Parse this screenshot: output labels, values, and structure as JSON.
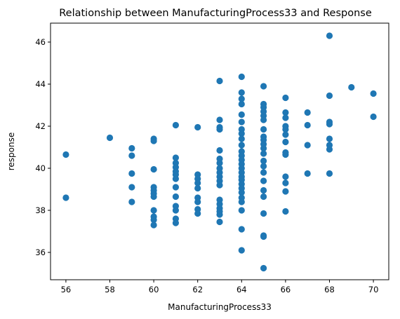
{
  "chart_data": {
    "type": "scatter",
    "title": "Relationship between ManufacturingProcess33 and Response",
    "xlabel": "ManufacturingProcess33",
    "ylabel": "response",
    "xlim": [
      55.3,
      70.7
    ],
    "ylim": [
      34.7,
      46.9
    ],
    "xticks": [
      56,
      58,
      60,
      62,
      64,
      66,
      68,
      70
    ],
    "yticks": [
      36,
      38,
      40,
      42,
      44,
      46
    ],
    "grid": false,
    "marker_color": "#1f77b4",
    "points": [
      {
        "x": 56,
        "y": 40.65
      },
      {
        "x": 56,
        "y": 38.6
      },
      {
        "x": 58,
        "y": 41.45
      },
      {
        "x": 59,
        "y": 40.95
      },
      {
        "x": 59,
        "y": 40.6
      },
      {
        "x": 59,
        "y": 39.75
      },
      {
        "x": 59,
        "y": 39.1
      },
      {
        "x": 59,
        "y": 38.4
      },
      {
        "x": 60,
        "y": 41.4
      },
      {
        "x": 60,
        "y": 41.3
      },
      {
        "x": 60,
        "y": 39.95
      },
      {
        "x": 60,
        "y": 39.1
      },
      {
        "x": 60,
        "y": 38.95
      },
      {
        "x": 60,
        "y": 38.8
      },
      {
        "x": 60,
        "y": 38.65
      },
      {
        "x": 60,
        "y": 38.0
      },
      {
        "x": 60,
        "y": 37.7
      },
      {
        "x": 60,
        "y": 37.55
      },
      {
        "x": 60,
        "y": 37.3
      },
      {
        "x": 61,
        "y": 42.05
      },
      {
        "x": 61,
        "y": 40.5
      },
      {
        "x": 61,
        "y": 40.25
      },
      {
        "x": 61,
        "y": 40.05
      },
      {
        "x": 61,
        "y": 39.85
      },
      {
        "x": 61,
        "y": 39.7
      },
      {
        "x": 61,
        "y": 39.5
      },
      {
        "x": 61,
        "y": 39.1
      },
      {
        "x": 61,
        "y": 38.65
      },
      {
        "x": 61,
        "y": 38.2
      },
      {
        "x": 61,
        "y": 38.0
      },
      {
        "x": 61,
        "y": 37.6
      },
      {
        "x": 61,
        "y": 37.4
      },
      {
        "x": 62,
        "y": 41.95
      },
      {
        "x": 62,
        "y": 39.7
      },
      {
        "x": 62,
        "y": 39.5
      },
      {
        "x": 62,
        "y": 39.3
      },
      {
        "x": 62,
        "y": 39.05
      },
      {
        "x": 62,
        "y": 38.6
      },
      {
        "x": 62,
        "y": 38.4
      },
      {
        "x": 62,
        "y": 38.05
      },
      {
        "x": 62,
        "y": 37.85
      },
      {
        "x": 63,
        "y": 44.15
      },
      {
        "x": 63,
        "y": 42.3
      },
      {
        "x": 63,
        "y": 41.95
      },
      {
        "x": 63,
        "y": 41.85
      },
      {
        "x": 63,
        "y": 40.85
      },
      {
        "x": 63,
        "y": 40.45
      },
      {
        "x": 63,
        "y": 40.25
      },
      {
        "x": 63,
        "y": 40.0
      },
      {
        "x": 63,
        "y": 39.8
      },
      {
        "x": 63,
        "y": 39.6
      },
      {
        "x": 63,
        "y": 39.4
      },
      {
        "x": 63,
        "y": 39.2
      },
      {
        "x": 63,
        "y": 38.5
      },
      {
        "x": 63,
        "y": 38.3
      },
      {
        "x": 63,
        "y": 38.1
      },
      {
        "x": 63,
        "y": 37.95
      },
      {
        "x": 63,
        "y": 37.8
      },
      {
        "x": 63,
        "y": 37.45
      },
      {
        "x": 64,
        "y": 44.35
      },
      {
        "x": 64,
        "y": 43.6
      },
      {
        "x": 64,
        "y": 43.3
      },
      {
        "x": 64,
        "y": 43.05
      },
      {
        "x": 64,
        "y": 42.55
      },
      {
        "x": 64,
        "y": 42.2
      },
      {
        "x": 64,
        "y": 41.85
      },
      {
        "x": 64,
        "y": 41.65
      },
      {
        "x": 64,
        "y": 41.4
      },
      {
        "x": 64,
        "y": 41.1
      },
      {
        "x": 64,
        "y": 40.8
      },
      {
        "x": 64,
        "y": 40.6
      },
      {
        "x": 64,
        "y": 40.4
      },
      {
        "x": 64,
        "y": 40.2
      },
      {
        "x": 64,
        "y": 40.0
      },
      {
        "x": 64,
        "y": 39.8
      },
      {
        "x": 64,
        "y": 39.6
      },
      {
        "x": 64,
        "y": 39.45
      },
      {
        "x": 64,
        "y": 39.25
      },
      {
        "x": 64,
        "y": 39.05
      },
      {
        "x": 64,
        "y": 38.85
      },
      {
        "x": 64,
        "y": 38.6
      },
      {
        "x": 64,
        "y": 38.4
      },
      {
        "x": 64,
        "y": 38.0
      },
      {
        "x": 64,
        "y": 37.1
      },
      {
        "x": 64,
        "y": 36.1
      },
      {
        "x": 65,
        "y": 43.9
      },
      {
        "x": 65,
        "y": 43.05
      },
      {
        "x": 65,
        "y": 42.9
      },
      {
        "x": 65,
        "y": 42.7
      },
      {
        "x": 65,
        "y": 42.5
      },
      {
        "x": 65,
        "y": 42.3
      },
      {
        "x": 65,
        "y": 41.85
      },
      {
        "x": 65,
        "y": 41.5
      },
      {
        "x": 65,
        "y": 41.35
      },
      {
        "x": 65,
        "y": 41.15
      },
      {
        "x": 65,
        "y": 40.95
      },
      {
        "x": 65,
        "y": 40.7
      },
      {
        "x": 65,
        "y": 40.35
      },
      {
        "x": 65,
        "y": 40.1
      },
      {
        "x": 65,
        "y": 39.8
      },
      {
        "x": 65,
        "y": 39.4
      },
      {
        "x": 65,
        "y": 38.95
      },
      {
        "x": 65,
        "y": 38.65
      },
      {
        "x": 65,
        "y": 37.85
      },
      {
        "x": 65,
        "y": 36.8
      },
      {
        "x": 65,
        "y": 36.75
      },
      {
        "x": 65,
        "y": 35.25
      },
      {
        "x": 66,
        "y": 43.35
      },
      {
        "x": 66,
        "y": 42.65
      },
      {
        "x": 66,
        "y": 42.4
      },
      {
        "x": 66,
        "y": 42.0
      },
      {
        "x": 66,
        "y": 41.85
      },
      {
        "x": 66,
        "y": 41.6
      },
      {
        "x": 66,
        "y": 41.25
      },
      {
        "x": 66,
        "y": 40.75
      },
      {
        "x": 66,
        "y": 40.65
      },
      {
        "x": 66,
        "y": 39.6
      },
      {
        "x": 66,
        "y": 39.3
      },
      {
        "x": 66,
        "y": 38.9
      },
      {
        "x": 66,
        "y": 37.95
      },
      {
        "x": 67,
        "y": 42.65
      },
      {
        "x": 67,
        "y": 42.05
      },
      {
        "x": 67,
        "y": 41.1
      },
      {
        "x": 67,
        "y": 39.75
      },
      {
        "x": 68,
        "y": 46.3
      },
      {
        "x": 68,
        "y": 43.45
      },
      {
        "x": 68,
        "y": 42.2
      },
      {
        "x": 68,
        "y": 42.1
      },
      {
        "x": 68,
        "y": 41.4
      },
      {
        "x": 68,
        "y": 41.1
      },
      {
        "x": 68,
        "y": 40.9
      },
      {
        "x": 68,
        "y": 39.75
      },
      {
        "x": 69,
        "y": 43.85
      },
      {
        "x": 70,
        "y": 43.55
      },
      {
        "x": 70,
        "y": 42.45
      }
    ]
  }
}
